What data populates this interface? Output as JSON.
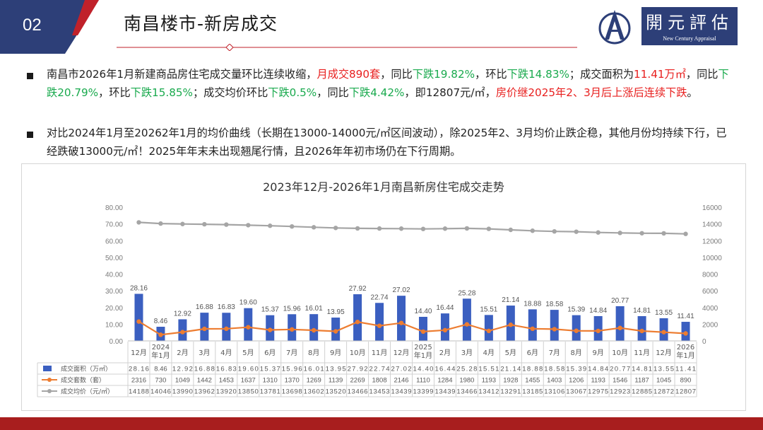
{
  "header": {
    "badge_number": "02",
    "title": "南昌楼市-新房成交",
    "logo_cn": "開元評估",
    "logo_en": "New Century Appraisal"
  },
  "bullets": [
    {
      "segments": [
        {
          "text": "南昌市2026年1月新建商品房住宅成交量环比连续收缩，",
          "style": "normal"
        },
        {
          "text": "月成交890套",
          "style": "red"
        },
        {
          "text": "，同比",
          "style": "normal"
        },
        {
          "text": "下跌19.82%",
          "style": "green"
        },
        {
          "text": "，环比",
          "style": "normal"
        },
        {
          "text": "下跌14.83%",
          "style": "green"
        },
        {
          "text": "；成交面积为",
          "style": "normal"
        },
        {
          "text": "11.41万㎡",
          "style": "red"
        },
        {
          "text": "，同比",
          "style": "normal"
        },
        {
          "text": "下跌20.79%",
          "style": "green"
        },
        {
          "text": "，环比",
          "style": "normal"
        },
        {
          "text": "下跌15.85%",
          "style": "green"
        },
        {
          "text": "；成交均价环比",
          "style": "normal"
        },
        {
          "text": "下跌0.5%",
          "style": "green"
        },
        {
          "text": "，同比",
          "style": "normal"
        },
        {
          "text": "下跌4.42%",
          "style": "green"
        },
        {
          "text": "，即12807元/㎡，",
          "style": "normal"
        },
        {
          "text": "房价继2025年2、3月后上涨后连续下跌",
          "style": "red"
        },
        {
          "text": "。",
          "style": "normal"
        }
      ]
    },
    {
      "segments": [
        {
          "text": "对比2024年1月至20262年1月的均价曲线（长期在13000-14000元/㎡区间波动），除2025年2、3月均价止跌企稳，其他月份均持续下行，已经跌破13000元/㎡！2025年年末未出现翘尾行情，且2026年年初市场仍在下行周期。",
          "style": "normal"
        }
      ]
    }
  ],
  "chart_data": {
    "type": "bar",
    "title": "2023年12月-2026年1月南昌新房住宅成交走势",
    "categories": [
      "12月",
      "2024\n年1月",
      "2月",
      "3月",
      "4月",
      "5月",
      "6月",
      "7月",
      "8月",
      "9月",
      "10月",
      "11月",
      "12月",
      "2025\n年1月",
      "2月",
      "3月",
      "4月",
      "5月",
      "6月",
      "7月",
      "8月",
      "9月",
      "10月",
      "11月",
      "12月",
      "2026\n年1月"
    ],
    "series": [
      {
        "name": "成交面积（万㎡）",
        "type": "bar",
        "axis": "left",
        "color": "#3b5fc0",
        "values": [
          28.16,
          8.46,
          12.92,
          16.88,
          16.83,
          19.6,
          15.37,
          15.96,
          16.01,
          13.95,
          27.92,
          22.74,
          27.02,
          14.4,
          16.44,
          25.28,
          15.51,
          21.14,
          18.88,
          18.58,
          15.39,
          14.84,
          20.77,
          14.81,
          13.55,
          11.41
        ],
        "labels": [
          "28.16",
          "8.46",
          "12.92",
          "16.88",
          "16.83",
          "19.60",
          "15.37",
          "15.96",
          "16.01",
          "13.95",
          "27.92",
          "22.74",
          "27.02",
          "14.40",
          "16.44",
          "25.28",
          "15.51",
          "21.14",
          "18.88",
          "18.58",
          "15.39",
          "14.84",
          "20.77",
          "14.81",
          "13.55",
          "11.41"
        ]
      },
      {
        "name": "成交套数（套）",
        "type": "line",
        "axis": "right",
        "color": "#ed7d31",
        "values": [
          2316,
          730,
          1049,
          1442,
          1453,
          1637,
          1310,
          1370,
          1269,
          1139,
          2269,
          1808,
          2146,
          1110,
          1284,
          1980,
          1193,
          1928,
          1455,
          1403,
          1206,
          1193,
          1546,
          1187,
          1045,
          890
        ]
      },
      {
        "name": "成交均价（元/㎡）",
        "type": "line",
        "axis": "right",
        "color": "#a5a5a5",
        "values": [
          14188,
          14046,
          13990,
          13962,
          13920,
          13850,
          13781,
          13698,
          13602,
          13520,
          13466,
          13453,
          13439,
          13399,
          13439,
          13466,
          13412,
          13291,
          13185,
          13106,
          13067,
          12975,
          12923,
          12885,
          12872,
          12807
        ]
      }
    ],
    "y_left": {
      "min": 0,
      "max": 80,
      "ticks": [
        "0.00",
        "10.00",
        "20.00",
        "30.00",
        "40.00",
        "50.00",
        "60.00",
        "70.00",
        "80.00"
      ]
    },
    "y_right": {
      "min": 0,
      "max": 16000,
      "ticks": [
        "0",
        "2000",
        "4000",
        "6000",
        "8000",
        "10000",
        "12000",
        "14000",
        "16000"
      ]
    },
    "data_table": true,
    "grid": false,
    "legend": "data-table"
  },
  "colors": {
    "brand_navy": "#2d3f78",
    "brand_red": "#a81e1e",
    "highlight_red": "#e8201f",
    "highlight_green": "#1aaa4e"
  }
}
